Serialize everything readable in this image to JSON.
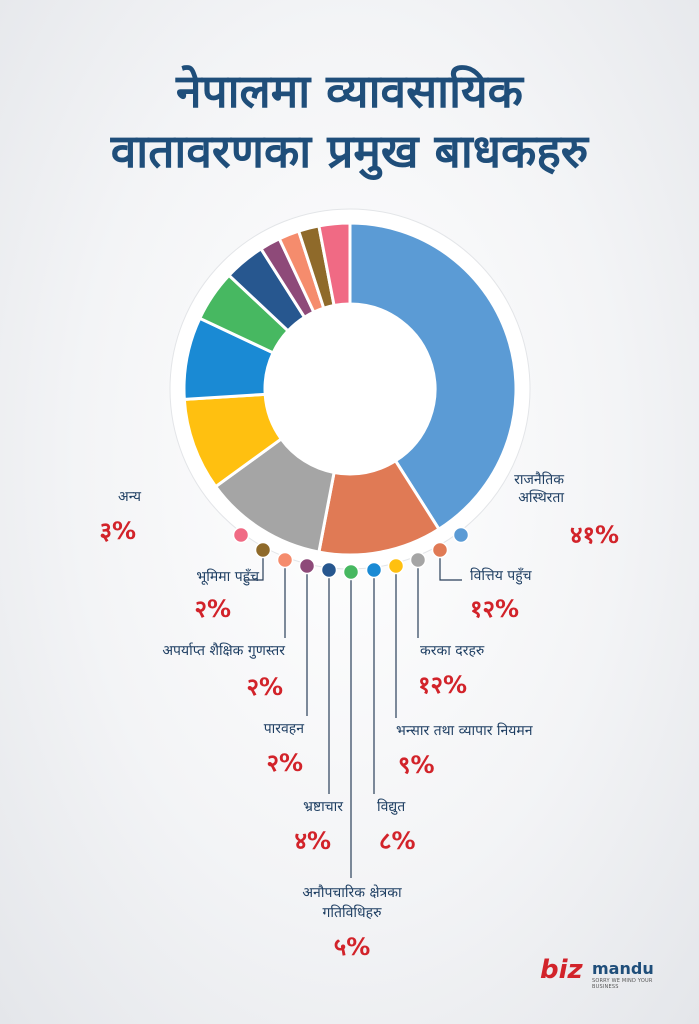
{
  "header": {
    "title_line1": "नेपालमा व्यावसायिक",
    "title_line2": "वातावरणका प्रमुख बाधकहरु"
  },
  "chart_data": {
    "type": "pie",
    "title": "नेपालमा व्यावसायिक वातावरणका प्रमुख बाधकहरु",
    "slices": [
      {
        "label": "राजनैतिक अस्थिरता",
        "value": 41,
        "value_label": "४१%",
        "color": "#5b9bd5"
      },
      {
        "label": "वित्तिय पहुँच",
        "value": 12,
        "value_label": "१२%",
        "color": "#e07a55"
      },
      {
        "label": "करका दरहरु",
        "value": 12,
        "value_label": "१२%",
        "color": "#a5a5a5"
      },
      {
        "label": "भन्सार तथा व्यापार नियमन",
        "value": 9,
        "value_label": "९%",
        "color": "#ffc010"
      },
      {
        "label": "विद्युत",
        "value": 8,
        "value_label": "८%",
        "color": "#1a8ad4"
      },
      {
        "label": "अनौपचारिक क्षेत्रका गतिविधिहरु",
        "value": 5,
        "value_label": "५%",
        "color": "#47b861"
      },
      {
        "label": "भ्रष्टाचार",
        "value": 4,
        "value_label": "४%",
        "color": "#27578f"
      },
      {
        "label": "पारवहन",
        "value": 2,
        "value_label": "२%",
        "color": "#8e4a79"
      },
      {
        "label": "अपर्याप्त शैक्षिक गुणस्तर",
        "value": 2,
        "value_label": "२%",
        "color": "#f58c6d"
      },
      {
        "label": "भूमिमा पहुँच",
        "value": 2,
        "value_label": "२%",
        "color": "#8f6a2a"
      },
      {
        "label": "अन्य",
        "value": 3,
        "value_label": "३%",
        "color": "#f06a84"
      }
    ]
  },
  "logo": {
    "biz": "biz",
    "mandu": "mandu",
    "tagline": "SORRY WE MIND YOUR BUSINESS"
  }
}
